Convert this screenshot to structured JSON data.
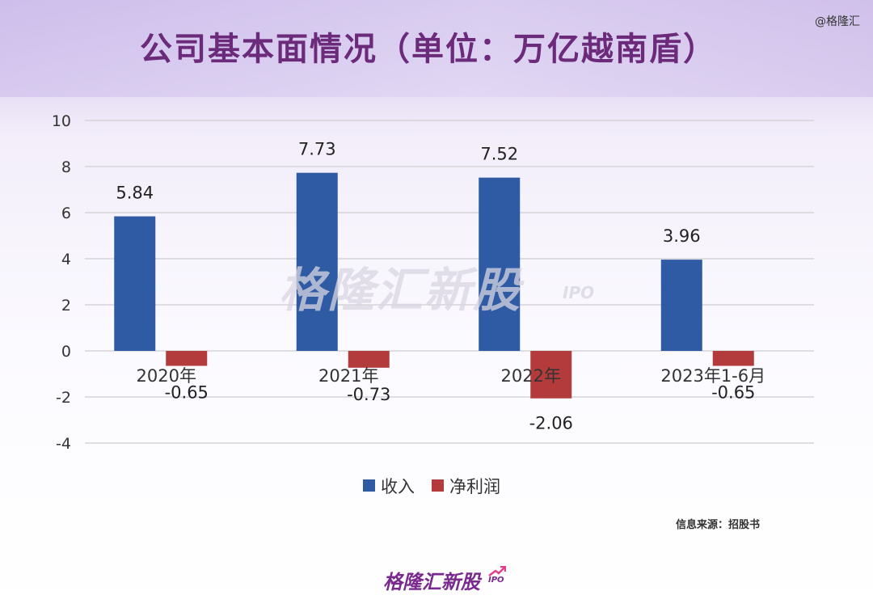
{
  "title": "公司基本面情况（单位：万亿越南盾）",
  "copyright": "@格隆汇",
  "watermark": {
    "text": "格隆汇新股",
    "suffix": "IPO"
  },
  "source": "信息来源：招股书",
  "brand": {
    "text": "格隆汇新股",
    "suffix": "IPO"
  },
  "colors": {
    "revenue": "#2f5ba5",
    "profit": "#b33b3b",
    "title": "#6b2a7a",
    "brand": "#7a2a8e"
  },
  "chart_data": {
    "type": "bar",
    "categories": [
      "2020年",
      "2021年",
      "2022年",
      "2023年1-6月"
    ],
    "series": [
      {
        "name": "收入",
        "values": [
          5.84,
          7.73,
          7.52,
          3.96
        ],
        "labels": [
          "5.84",
          "7.73",
          "7.52",
          "3.96"
        ]
      },
      {
        "name": "净利润",
        "values": [
          -0.65,
          -0.73,
          -2.06,
          -0.65
        ],
        "labels": [
          "-0.65",
          "-0.73",
          "-2.06",
          "-0.65"
        ]
      }
    ],
    "ylim": [
      -4,
      10
    ],
    "yticks": [
      "10",
      "8",
      "6",
      "4",
      "2",
      "0",
      "-2",
      "-4"
    ],
    "grid": true,
    "legend": "bottom"
  }
}
